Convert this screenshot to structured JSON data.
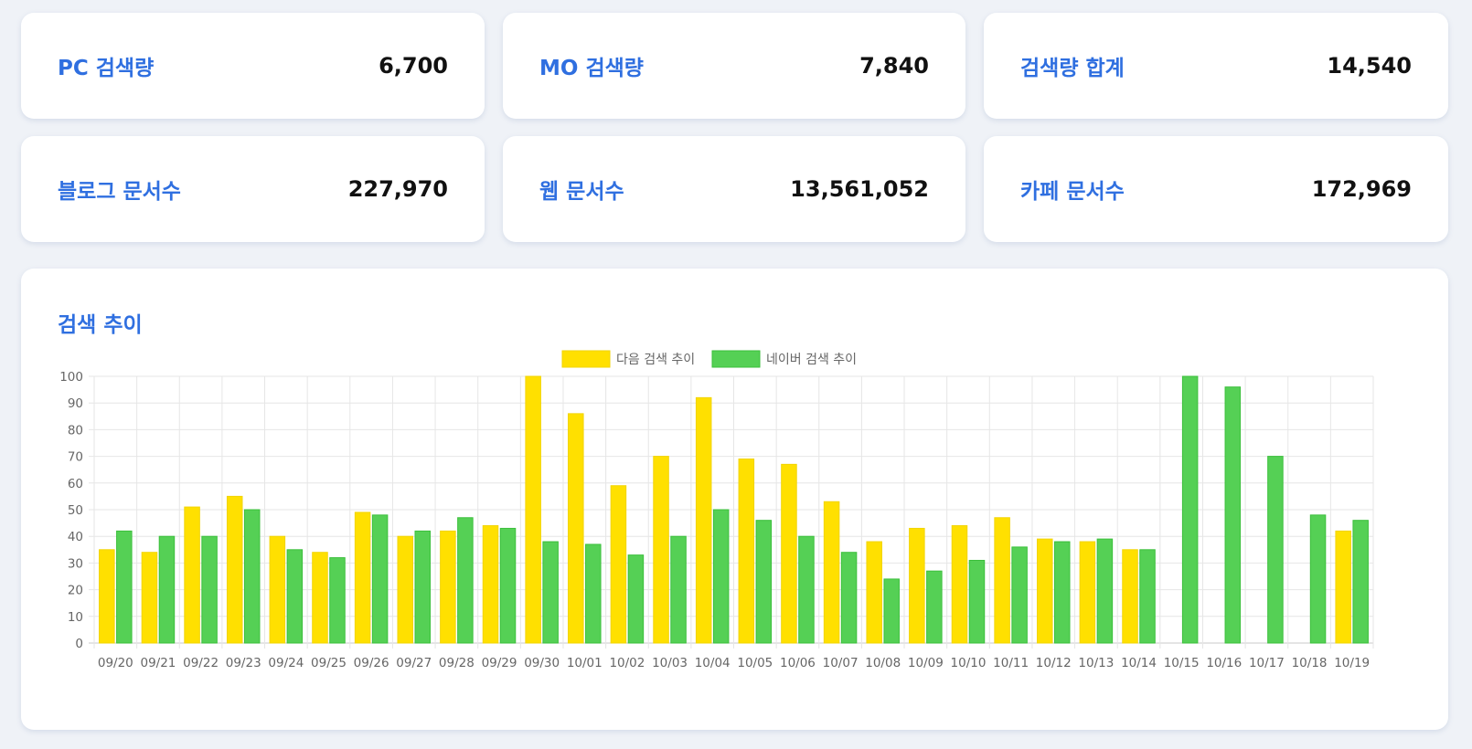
{
  "stats": [
    {
      "label": "PC 검색량",
      "value": "6,700"
    },
    {
      "label": "MO 검색량",
      "value": "7,840"
    },
    {
      "label": "검색량 합계",
      "value": "14,540"
    },
    {
      "label": "블로그 문서수",
      "value": "227,970"
    },
    {
      "label": "웹 문서수",
      "value": "13,561,052"
    },
    {
      "label": "카페 문서수",
      "value": "172,969"
    }
  ],
  "chart_section": {
    "title": "검색 추이"
  },
  "colors": {
    "daum": "#ffe000",
    "daum_border": "#f2d400",
    "naver": "#55d055",
    "naver_border": "#3bbf3b",
    "accent": "#2f6fe0"
  },
  "chart_data": {
    "type": "bar",
    "title": "검색 추이",
    "categories": [
      "09/20",
      "09/21",
      "09/22",
      "09/23",
      "09/24",
      "09/25",
      "09/26",
      "09/27",
      "09/28",
      "09/29",
      "09/30",
      "10/01",
      "10/02",
      "10/03",
      "10/04",
      "10/05",
      "10/06",
      "10/07",
      "10/08",
      "10/09",
      "10/10",
      "10/11",
      "10/12",
      "10/13",
      "10/14",
      "10/15",
      "10/16",
      "10/17",
      "10/18",
      "10/19"
    ],
    "series": [
      {
        "name": "다음 검색 추이",
        "values": [
          35,
          34,
          51,
          55,
          40,
          34,
          49,
          40,
          42,
          44,
          100,
          86,
          59,
          70,
          92,
          69,
          67,
          53,
          38,
          43,
          44,
          47,
          39,
          38,
          35,
          0,
          0,
          0,
          0,
          42
        ]
      },
      {
        "name": "네이버 검색 추이",
        "values": [
          42,
          40,
          40,
          50,
          35,
          32,
          48,
          42,
          47,
          43,
          38,
          37,
          33,
          40,
          50,
          46,
          40,
          34,
          24,
          27,
          31,
          36,
          38,
          39,
          35,
          100,
          96,
          70,
          48,
          46
        ]
      }
    ],
    "ylim": [
      0,
      100
    ],
    "yticks": [
      0,
      10,
      20,
      30,
      40,
      50,
      60,
      70,
      80,
      90,
      100
    ],
    "grid": true,
    "legend": "top-center"
  }
}
